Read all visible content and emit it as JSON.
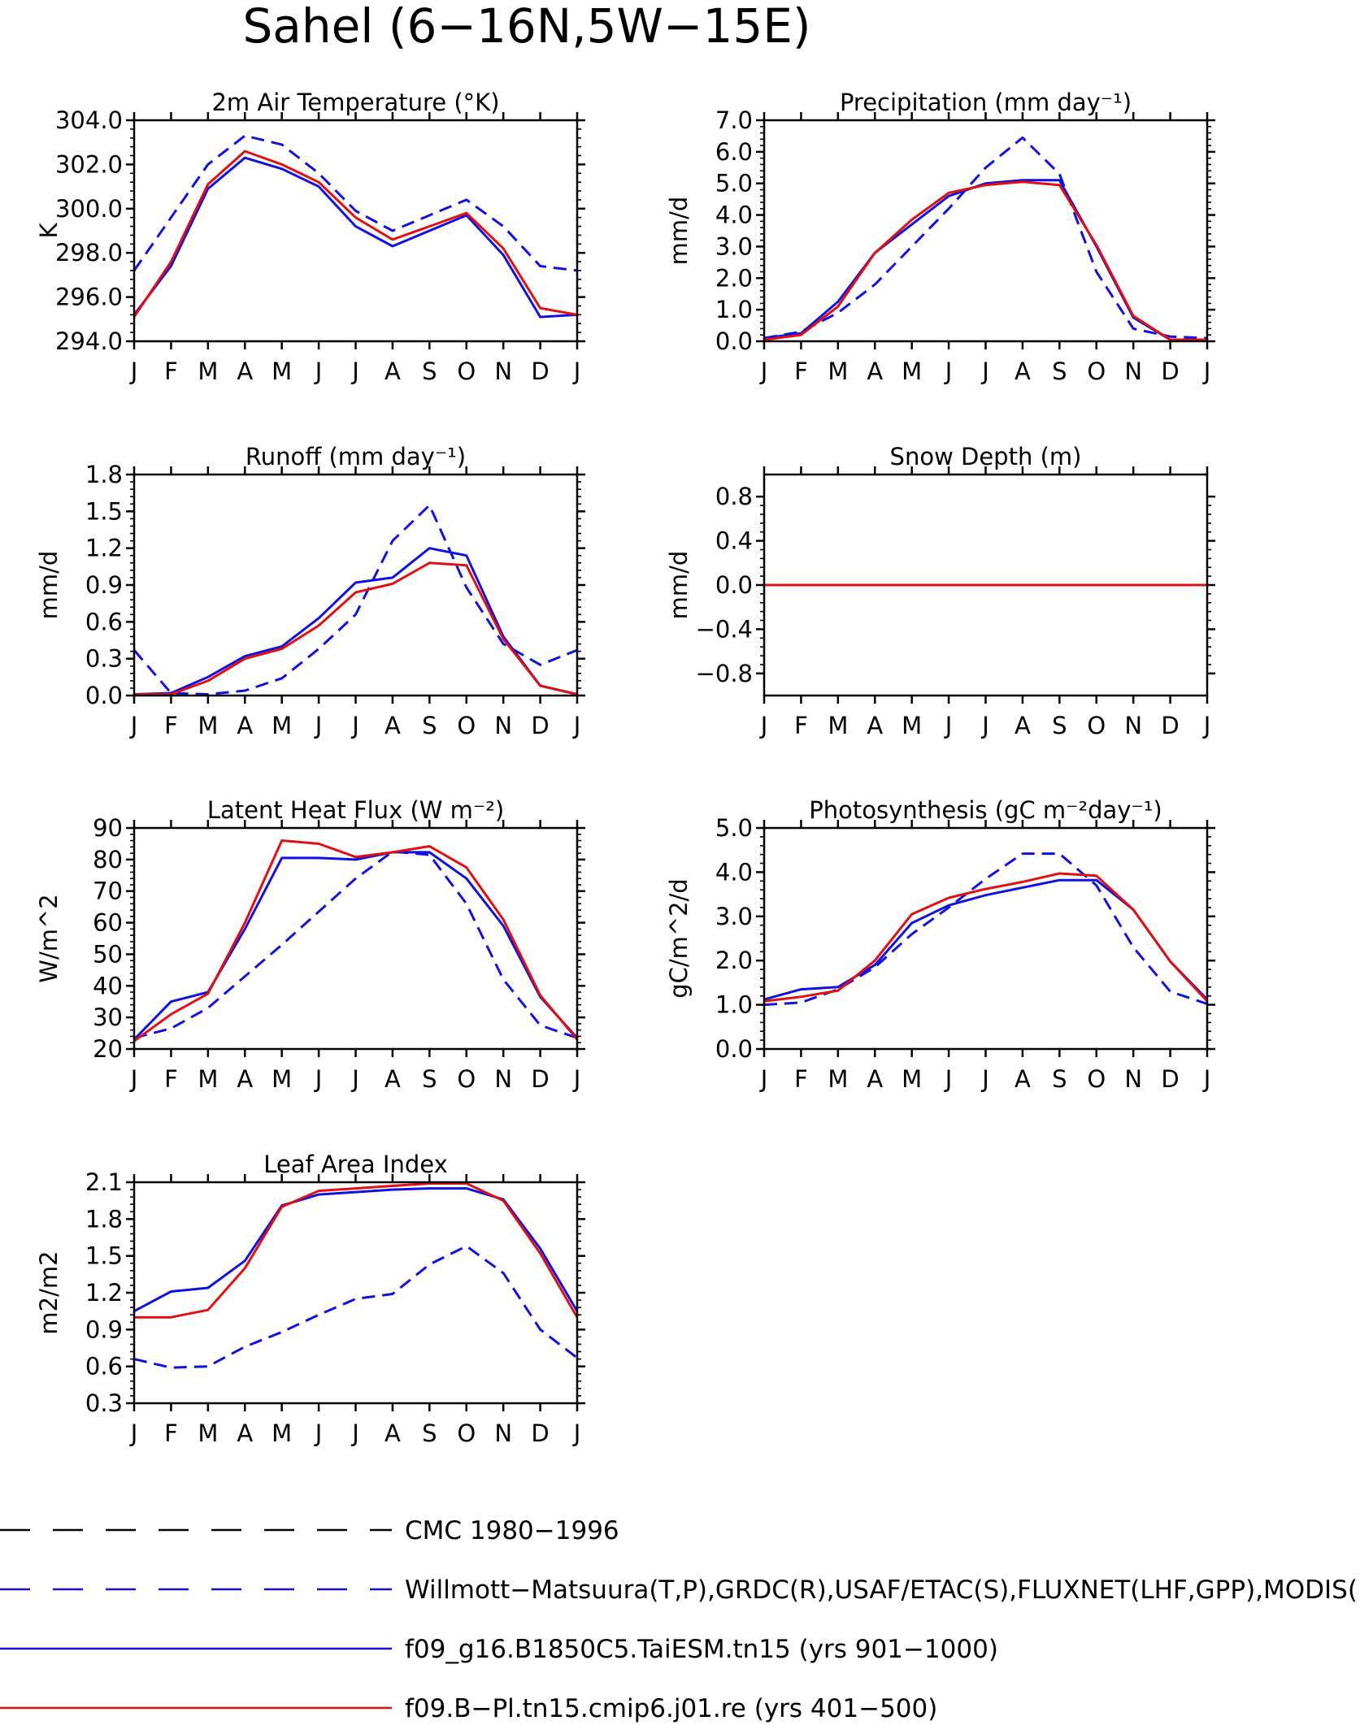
{
  "title": "Sahel (6−16N,5W−15E)",
  "colors": {
    "cmc": "#000000",
    "obs": "#1010e0",
    "taiesm": "#1010e0",
    "cmip6": "#e01010"
  },
  "months": [
    "J",
    "F",
    "M",
    "A",
    "M",
    "J",
    "J",
    "A",
    "S",
    "O",
    "N",
    "D",
    "J"
  ],
  "legend": [
    {
      "label": "CMC 1980−1996",
      "color": "#000000",
      "dash": "long"
    },
    {
      "label": "Willmott−Matsuura(T,P),GRDC(R),USAF/ETAC(S),FLUXNET(LHF,GPP),MODIS(L",
      "color": "#1010e0",
      "dash": "long"
    },
    {
      "label": "f09_g16.B1850C5.TaiESM.tn15 (yrs 901−1000)",
      "color": "#1010e0",
      "dash": "solid"
    },
    {
      "label": "f09.B−Pl.tn15.cmip6.j01.re (yrs 401−500)",
      "color": "#e01010",
      "dash": "solid"
    }
  ],
  "chart_data": [
    {
      "type": "line",
      "title": "2m Air Temperature (°K)",
      "ylabel": "K",
      "ylim": [
        294,
        304
      ],
      "yticks": [
        294,
        296,
        298,
        300,
        302,
        304
      ],
      "ytick_labels": [
        "294.0",
        "296.0",
        "298.0",
        "300.0",
        "302.0",
        "304.0"
      ],
      "series": [
        {
          "name": "Willmott−Matsuura(T,P),GRDC(R),USAF/ETAC(S),FLUXNET(LHF,GPP),MODIS(L",
          "style": "dashed",
          "color": "#1010e0",
          "values": [
            297.2,
            299.6,
            302.0,
            303.3,
            302.9,
            301.6,
            299.9,
            299.0,
            299.7,
            300.4,
            299.2,
            297.4,
            297.2
          ]
        },
        {
          "name": "f09_g16.B1850C5.TaiESM.tn15 (yrs 901−1000)",
          "style": "solid",
          "color": "#1010e0",
          "values": [
            295.2,
            297.4,
            300.9,
            302.3,
            301.8,
            301.0,
            299.2,
            298.3,
            299.0,
            299.7,
            297.9,
            295.1,
            295.2
          ]
        },
        {
          "name": "f09.B−Pl.tn15.cmip6.j01.re (yrs 401−500)",
          "style": "solid",
          "color": "#e01010",
          "values": [
            295.1,
            297.6,
            301.1,
            302.6,
            302.0,
            301.2,
            299.6,
            298.6,
            299.2,
            299.8,
            298.2,
            295.5,
            295.2
          ]
        }
      ]
    },
    {
      "type": "line",
      "title": "Precipitation (mm day⁻¹)",
      "ylabel": "mm/d",
      "ylim": [
        0,
        7
      ],
      "yticks": [
        0,
        1,
        2,
        3,
        4,
        5,
        6,
        7
      ],
      "ytick_labels": [
        "0.0",
        "1.0",
        "2.0",
        "3.0",
        "4.0",
        "5.0",
        "6.0",
        "7.0"
      ],
      "series": [
        {
          "name": "Willmott−Matsuura(T,P),GRDC(R),USAF/ETAC(S),FLUXNET(LHF,GPP),MODIS(L",
          "style": "dashed",
          "color": "#1010e0",
          "values": [
            0.1,
            0.3,
            0.9,
            1.8,
            3.0,
            4.2,
            5.5,
            6.45,
            5.3,
            2.2,
            0.4,
            0.15,
            0.1
          ]
        },
        {
          "name": "f09_g16.B1850C5.TaiESM.tn15 (yrs 901−1000)",
          "style": "solid",
          "color": "#1010e0",
          "values": [
            0.1,
            0.25,
            1.25,
            2.8,
            3.7,
            4.6,
            5.0,
            5.1,
            5.1,
            3.0,
            0.75,
            0.05,
            0.05
          ]
        },
        {
          "name": "f09.B−Pl.tn15.cmip6.j01.re (yrs 401−500)",
          "style": "solid",
          "color": "#e01010",
          "values": [
            0.05,
            0.2,
            1.1,
            2.8,
            3.85,
            4.7,
            4.95,
            5.05,
            4.95,
            3.05,
            0.8,
            0.05,
            0.05
          ]
        }
      ]
    },
    {
      "type": "line",
      "title": "Runoff (mm day⁻¹)",
      "ylabel": "mm/d",
      "ylim": [
        0,
        1.8
      ],
      "yticks": [
        0,
        0.3,
        0.6,
        0.9,
        1.2,
        1.5,
        1.8
      ],
      "ytick_labels": [
        "0.0",
        "0.3",
        "0.6",
        "0.9",
        "1.2",
        "1.5",
        "1.8"
      ],
      "series": [
        {
          "name": "Willmott−Matsuura(T,P),GRDC(R),USAF/ETAC(S),FLUXNET(LHF,GPP),MODIS(L",
          "style": "dashed",
          "color": "#1010e0",
          "values": [
            0.37,
            0.02,
            0.01,
            0.04,
            0.14,
            0.38,
            0.66,
            1.26,
            1.55,
            0.88,
            0.42,
            0.25,
            0.37
          ]
        },
        {
          "name": "f09_g16.B1850C5.TaiESM.tn15 (yrs 901−1000)",
          "style": "solid",
          "color": "#1010e0",
          "values": [
            0.01,
            0.02,
            0.15,
            0.32,
            0.4,
            0.63,
            0.92,
            0.96,
            1.2,
            1.14,
            0.48,
            0.08,
            0.01
          ]
        },
        {
          "name": "f09.B−Pl.tn15.cmip6.j01.re (yrs 401−500)",
          "style": "solid",
          "color": "#e01010",
          "values": [
            0.01,
            0.01,
            0.12,
            0.3,
            0.38,
            0.57,
            0.84,
            0.91,
            1.08,
            1.06,
            0.46,
            0.08,
            0.01
          ]
        }
      ]
    },
    {
      "type": "line",
      "title": "Snow Depth (m)",
      "ylabel": "mm/d",
      "ylim": [
        -1,
        1
      ],
      "yticks": [
        -0.8,
        -0.4,
        0,
        0.4,
        0.8
      ],
      "ytick_labels": [
        "−0.8",
        "−0.4",
        "0.0",
        "0.4",
        "0.8"
      ],
      "series": [
        {
          "name": "Willmott−Matsuura(T,P),GRDC(R),USAF/ETAC(S),FLUXNET(LHF,GPP),MODIS(L",
          "style": "dashed",
          "color": "#1010e0",
          "values": [
            0,
            0,
            0,
            0,
            0,
            0,
            0,
            0,
            0,
            0,
            0,
            0,
            0
          ]
        },
        {
          "name": "f09_g16.B1850C5.TaiESM.tn15 (yrs 901−1000)",
          "style": "solid",
          "color": "#1010e0",
          "values": [
            0,
            0,
            0,
            0,
            0,
            0,
            0,
            0,
            0,
            0,
            0,
            0,
            0
          ]
        },
        {
          "name": "f09.B−Pl.tn15.cmip6.j01.re (yrs 401−500)",
          "style": "solid",
          "color": "#e01010",
          "values": [
            0,
            0,
            0,
            0,
            0,
            0,
            0,
            0,
            0,
            0,
            0,
            0,
            0
          ]
        }
      ]
    },
    {
      "type": "line",
      "title": "Latent Heat Flux (W m⁻²)",
      "ylabel": "W/m^2",
      "ylim": [
        20,
        90
      ],
      "yticks": [
        20,
        30,
        40,
        50,
        60,
        70,
        80,
        90
      ],
      "ytick_labels": [
        "20",
        "30",
        "40",
        "50",
        "60",
        "70",
        "80",
        "90"
      ],
      "series": [
        {
          "name": "Willmott−Matsuura(T,P),GRDC(R),USAF/ETAC(S),FLUXNET(LHF,GPP),MODIS(L",
          "style": "dashed",
          "color": "#1010e0",
          "values": [
            23.5,
            26.5,
            33,
            43,
            53,
            63.5,
            74,
            82.5,
            81.5,
            66,
            42,
            27.5,
            23.5
          ]
        },
        {
          "name": "f09_g16.B1850C5.TaiESM.tn15 (yrs 901−1000)",
          "style": "solid",
          "color": "#1010e0",
          "values": [
            23,
            35,
            38,
            58,
            80.5,
            80.5,
            80,
            82.3,
            82.3,
            74,
            59,
            36.5,
            23.5
          ]
        },
        {
          "name": "f09.B−Pl.tn15.cmip6.j01.re (yrs 401−500)",
          "style": "solid",
          "color": "#e01010",
          "values": [
            22.5,
            31,
            37.5,
            60,
            86,
            85,
            80.8,
            82.3,
            84.2,
            77.5,
            61,
            37,
            23
          ]
        }
      ]
    },
    {
      "type": "line",
      "title": "Photosynthesis (gC m⁻²day⁻¹)",
      "ylabel": "gC/m^2/d",
      "ylim": [
        0,
        5
      ],
      "yticks": [
        0,
        1,
        2,
        3,
        4,
        5
      ],
      "ytick_labels": [
        "0.0",
        "1.0",
        "2.0",
        "3.0",
        "4.0",
        "5.0"
      ],
      "series": [
        {
          "name": "Willmott−Matsuura(T,P),GRDC(R),USAF/ETAC(S),FLUXNET(LHF,GPP),MODIS(L",
          "style": "dashed",
          "color": "#1010e0",
          "values": [
            1.0,
            1.05,
            1.35,
            1.85,
            2.6,
            3.2,
            3.85,
            4.42,
            4.42,
            3.7,
            2.3,
            1.3,
            1.02
          ]
        },
        {
          "name": "f09_g16.B1850C5.TaiESM.tn15 (yrs 901−1000)",
          "style": "solid",
          "color": "#1010e0",
          "values": [
            1.12,
            1.35,
            1.4,
            1.9,
            2.85,
            3.25,
            3.48,
            3.65,
            3.82,
            3.82,
            3.15,
            1.98,
            1.12
          ]
        },
        {
          "name": "f09.B−Pl.tn15.cmip6.j01.re (yrs 401−500)",
          "style": "solid",
          "color": "#e01010",
          "values": [
            1.08,
            1.18,
            1.32,
            2.0,
            3.05,
            3.42,
            3.62,
            3.78,
            3.97,
            3.92,
            3.15,
            1.98,
            1.08
          ]
        }
      ]
    },
    {
      "type": "line",
      "title": "Leaf Area Index",
      "ylabel": "m2/m2",
      "ylim": [
        0.3,
        2.1
      ],
      "yticks": [
        0.3,
        0.6,
        0.9,
        1.2,
        1.5,
        1.8,
        2.1
      ],
      "ytick_labels": [
        "0.3",
        "0.6",
        "0.9",
        "1.2",
        "1.5",
        "1.8",
        "2.1"
      ],
      "series": [
        {
          "name": "Willmott−Matsuura(T,P),GRDC(R),USAF/ETAC(S),FLUXNET(LHF,GPP),MODIS(L",
          "style": "dashed",
          "color": "#1010e0",
          "values": [
            0.66,
            0.59,
            0.6,
            0.76,
            0.88,
            1.02,
            1.15,
            1.19,
            1.43,
            1.58,
            1.36,
            0.9,
            0.67
          ]
        },
        {
          "name": "f09_g16.B1850C5.TaiESM.tn15 (yrs 901−1000)",
          "style": "solid",
          "color": "#1010e0",
          "values": [
            1.05,
            1.21,
            1.24,
            1.46,
            1.91,
            2.0,
            2.02,
            2.04,
            2.05,
            2.05,
            1.96,
            1.56,
            1.05
          ]
        },
        {
          "name": "f09.B−Pl.tn15.cmip6.j01.re (yrs 401−500)",
          "style": "solid",
          "color": "#e01010",
          "values": [
            1.0,
            1.0,
            1.06,
            1.4,
            1.9,
            2.03,
            2.05,
            2.07,
            2.09,
            2.09,
            1.95,
            1.52,
            1.0
          ]
        }
      ]
    }
  ]
}
